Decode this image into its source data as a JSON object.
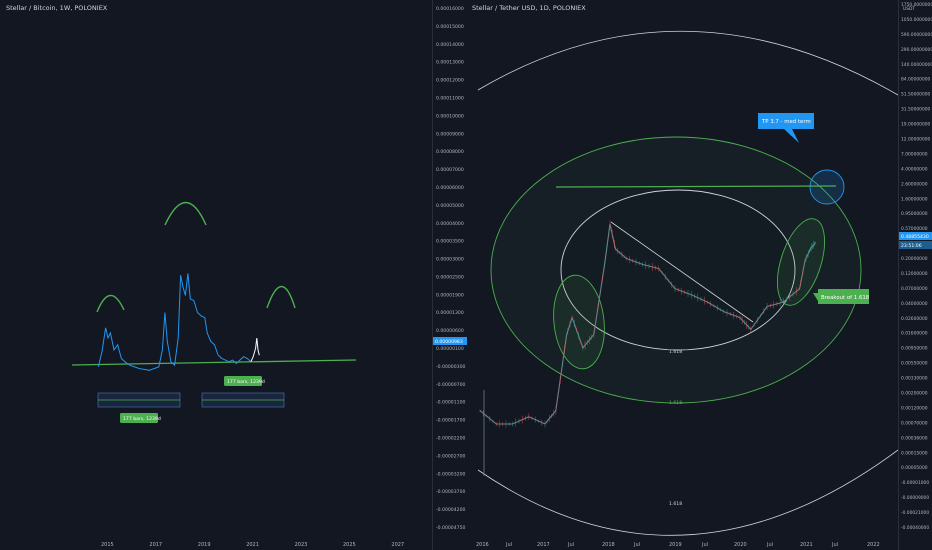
{
  "left_chart": {
    "title": "Stellar / Bitcoin, 1W, POLONIEX",
    "price_tag": "0.00000983",
    "annotations": {
      "box_upper": "177 bars, 1239d",
      "box_lower": "177 bars, 1239d"
    },
    "colors": {
      "line": "#2196f3",
      "current": "#ffffff",
      "support": "#4caf50",
      "arc": "#4caf50",
      "box_fill": "#1e3a5f",
      "label_bg": "#4caf50"
    }
  },
  "right_chart": {
    "title": "Stellar / Tether USD, 1D, POLONIEX",
    "price_tags": [
      "0.48855430",
      "23:51:06"
    ],
    "annotations": {
      "callout_tp": "TP 3.7 - med term",
      "callout_breakout": "Breakout of 1.618",
      "fib_inner": "1.618",
      "fib_middle": "1.618",
      "fib_outer": "1.618"
    },
    "colors": {
      "candles": "#787b86",
      "ellipse_white": "#d1d4dc",
      "ellipse_green": "#4caf50",
      "callout_blue": "#2196f3"
    }
  },
  "chart_data": [
    {
      "type": "line",
      "title": "Stellar / Bitcoin, 1W, POLONIEX",
      "x_ticks": [
        "2015",
        "2017",
        "2019",
        "2021",
        "2023",
        "2025",
        "2027"
      ],
      "y_ticks": [
        "0.00016000",
        "0.00015000",
        "0.00014000",
        "0.00013000",
        "0.00012000",
        "0.00011000",
        "0.00010000",
        "0.00009000",
        "0.00008000",
        "0.00007000",
        "0.00006000",
        "0.00005000",
        "0.00004000",
        "0.00003500",
        "0.00003000",
        "0.00002500",
        "0.00001900",
        "0.00001300",
        "0.00000600",
        "0.00000100",
        "-0.00000300",
        "-0.00000700",
        "-0.00001100",
        "-0.00001700",
        "-0.00002200",
        "-0.00002700",
        "-0.00003200",
        "-0.00003700",
        "-0.00004200",
        "-0.00004750"
      ],
      "series": [
        {
          "values": [
            {
              "x": "2014.6",
              "y": 3e-06
            },
            {
              "x": "2014.75",
              "y": 1.2e-05
            },
            {
              "x": "2014.9",
              "y": 2.6e-05
            },
            {
              "x": "2015.0",
              "y": 2e-05
            },
            {
              "x": "2015.1",
              "y": 2.3e-05
            },
            {
              "x": "2015.25",
              "y": 1.3e-05
            },
            {
              "x": "2015.4",
              "y": 1.6e-05
            },
            {
              "x": "2015.55",
              "y": 8e-06
            },
            {
              "x": "2015.7",
              "y": 6e-06
            },
            {
              "x": "2015.9",
              "y": 4e-06
            },
            {
              "x": "2016.1",
              "y": 3e-06
            },
            {
              "x": "2016.3",
              "y": 2e-06
            },
            {
              "x": "2016.5",
              "y": 1.5e-06
            },
            {
              "x": "2016.7",
              "y": 1e-06
            },
            {
              "x": "2016.9",
              "y": 2e-06
            },
            {
              "x": "2017.1",
              "y": 3e-06
            },
            {
              "x": "2017.25",
              "y": 1.3e-05
            },
            {
              "x": "2017.35",
              "y": 3.5e-05
            },
            {
              "x": "2017.45",
              "y": 1.8e-05
            },
            {
              "x": "2017.6",
              "y": 6e-06
            },
            {
              "x": "2017.75",
              "y": 4e-06
            },
            {
              "x": "2017.9",
              "y": 2e-05
            },
            {
              "x": "2018.0",
              "y": 5.7e-05
            },
            {
              "x": "2018.1",
              "y": 5e-05
            },
            {
              "x": "2018.2",
              "y": 4.5e-05
            },
            {
              "x": "2018.3",
              "y": 5.8e-05
            },
            {
              "x": "2018.4",
              "y": 4.3e-05
            },
            {
              "x": "2018.55",
              "y": 4.2e-05
            },
            {
              "x": "2018.7",
              "y": 3.5e-05
            },
            {
              "x": "2018.85",
              "y": 3.3e-05
            },
            {
              "x": "2019.0",
              "y": 3.2e-05
            },
            {
              "x": "2019.1",
              "y": 2.3e-05
            },
            {
              "x": "2019.25",
              "y": 1.8e-05
            },
            {
              "x": "2019.4",
              "y": 1.6e-05
            },
            {
              "x": "2019.55",
              "y": 1e-05
            },
            {
              "x": "2019.7",
              "y": 8e-06
            },
            {
              "x": "2019.85",
              "y": 7e-06
            },
            {
              "x": "2020.0",
              "y": 6e-06
            },
            {
              "x": "2020.15",
              "y": 7e-06
            },
            {
              "x": "2020.3",
              "y": 5e-06
            },
            {
              "x": "2020.45",
              "y": 7e-06
            },
            {
              "x": "2020.6",
              "y": 9e-06
            },
            {
              "x": "2020.75",
              "y": 8e-06
            },
            {
              "x": "2020.9",
              "y": 6e-06
            }
          ]
        },
        {
          "name": "",
          "values": [
            {
              "x": "2020.9",
              "y": 6e-06
            },
            {
              "x": "2021.0",
              "y": 9e-06
            },
            {
              "x": "2021.1",
              "y": 1.4e-05
            },
            {
              "x": "2021.15",
              "y": 2e-05
            },
            {
              "x": "2021.2",
              "y": 1.3e-05
            },
            {
              "x": "2021.25",
              "y": 9.8e-06
            }
          ]
        }
      ]
    },
    {
      "type": "line",
      "title": "Stellar / Tether USD, 1D, POLONIEX",
      "x_ticks": [
        "2016",
        "Jul",
        "2017",
        "Jul",
        "2018",
        "Jul",
        "2019",
        "Jul",
        "2020",
        "Jul",
        "2021",
        "Jul",
        "2022"
      ],
      "y_ticks": [
        "1750.00000000",
        "1050.00000000",
        "590.00000000",
        "290.00000000",
        "140.00000000",
        "84.00000000",
        "51.50000000",
        "31.50000000",
        "19.00000000",
        "12.00000000",
        "7.00000000",
        "4.00000000",
        "2.60000000",
        "1.60000000",
        "0.95000000",
        "0.57000000",
        "0.34000000",
        "0.20000000",
        "0.12000000",
        "0.07000000",
        "0.04000000",
        "0.02600000",
        "0.01600000",
        "0.00950000",
        "0.00550000",
        "0.00330000",
        "0.00200000",
        "0.00120000",
        "0.00070000",
        "0.00036000",
        "0.00015000",
        "0.00005000",
        "-0.00001000",
        "-0.00009000",
        "-0.00021000",
        "-0.00040000"
      ],
      "axis_unit": "USDT",
      "ylog": true,
      "series": [
        {
          "values": [
            {
              "x": "2016-01",
              "y": 0.003
            },
            {
              "x": "2016-04",
              "y": 0.002
            },
            {
              "x": "2016-07",
              "y": 0.002
            },
            {
              "x": "2016-10",
              "y": 0.0025
            },
            {
              "x": "2017-01",
              "y": 0.002
            },
            {
              "x": "2017-03",
              "y": 0.003
            },
            {
              "x": "2017-05",
              "y": 0.03
            },
            {
              "x": "2017-06",
              "y": 0.05
            },
            {
              "x": "2017-08",
              "y": 0.02
            },
            {
              "x": "2017-10",
              "y": 0.03
            },
            {
              "x": "2017-12",
              "y": 0.25
            },
            {
              "x": "2018-01",
              "y": 0.85
            },
            {
              "x": "2018-02",
              "y": 0.4
            },
            {
              "x": "2018-04",
              "y": 0.3
            },
            {
              "x": "2018-07",
              "y": 0.25
            },
            {
              "x": "2018-10",
              "y": 0.22
            },
            {
              "x": "2019-01",
              "y": 0.12
            },
            {
              "x": "2019-04",
              "y": 0.1
            },
            {
              "x": "2019-07",
              "y": 0.08
            },
            {
              "x": "2019-10",
              "y": 0.06
            },
            {
              "x": "2020-01",
              "y": 0.05
            },
            {
              "x": "2020-03",
              "y": 0.035
            },
            {
              "x": "2020-06",
              "y": 0.07
            },
            {
              "x": "2020-09",
              "y": 0.08
            },
            {
              "x": "2020-12",
              "y": 0.12
            },
            {
              "x": "2021-01",
              "y": 0.28
            },
            {
              "x": "2021-02",
              "y": 0.4
            },
            {
              "x": "2021-03",
              "y": 0.4886
            }
          ]
        }
      ],
      "levels": [
        {
          "y": 2.6,
          "label": ""
        }
      ]
    }
  ]
}
